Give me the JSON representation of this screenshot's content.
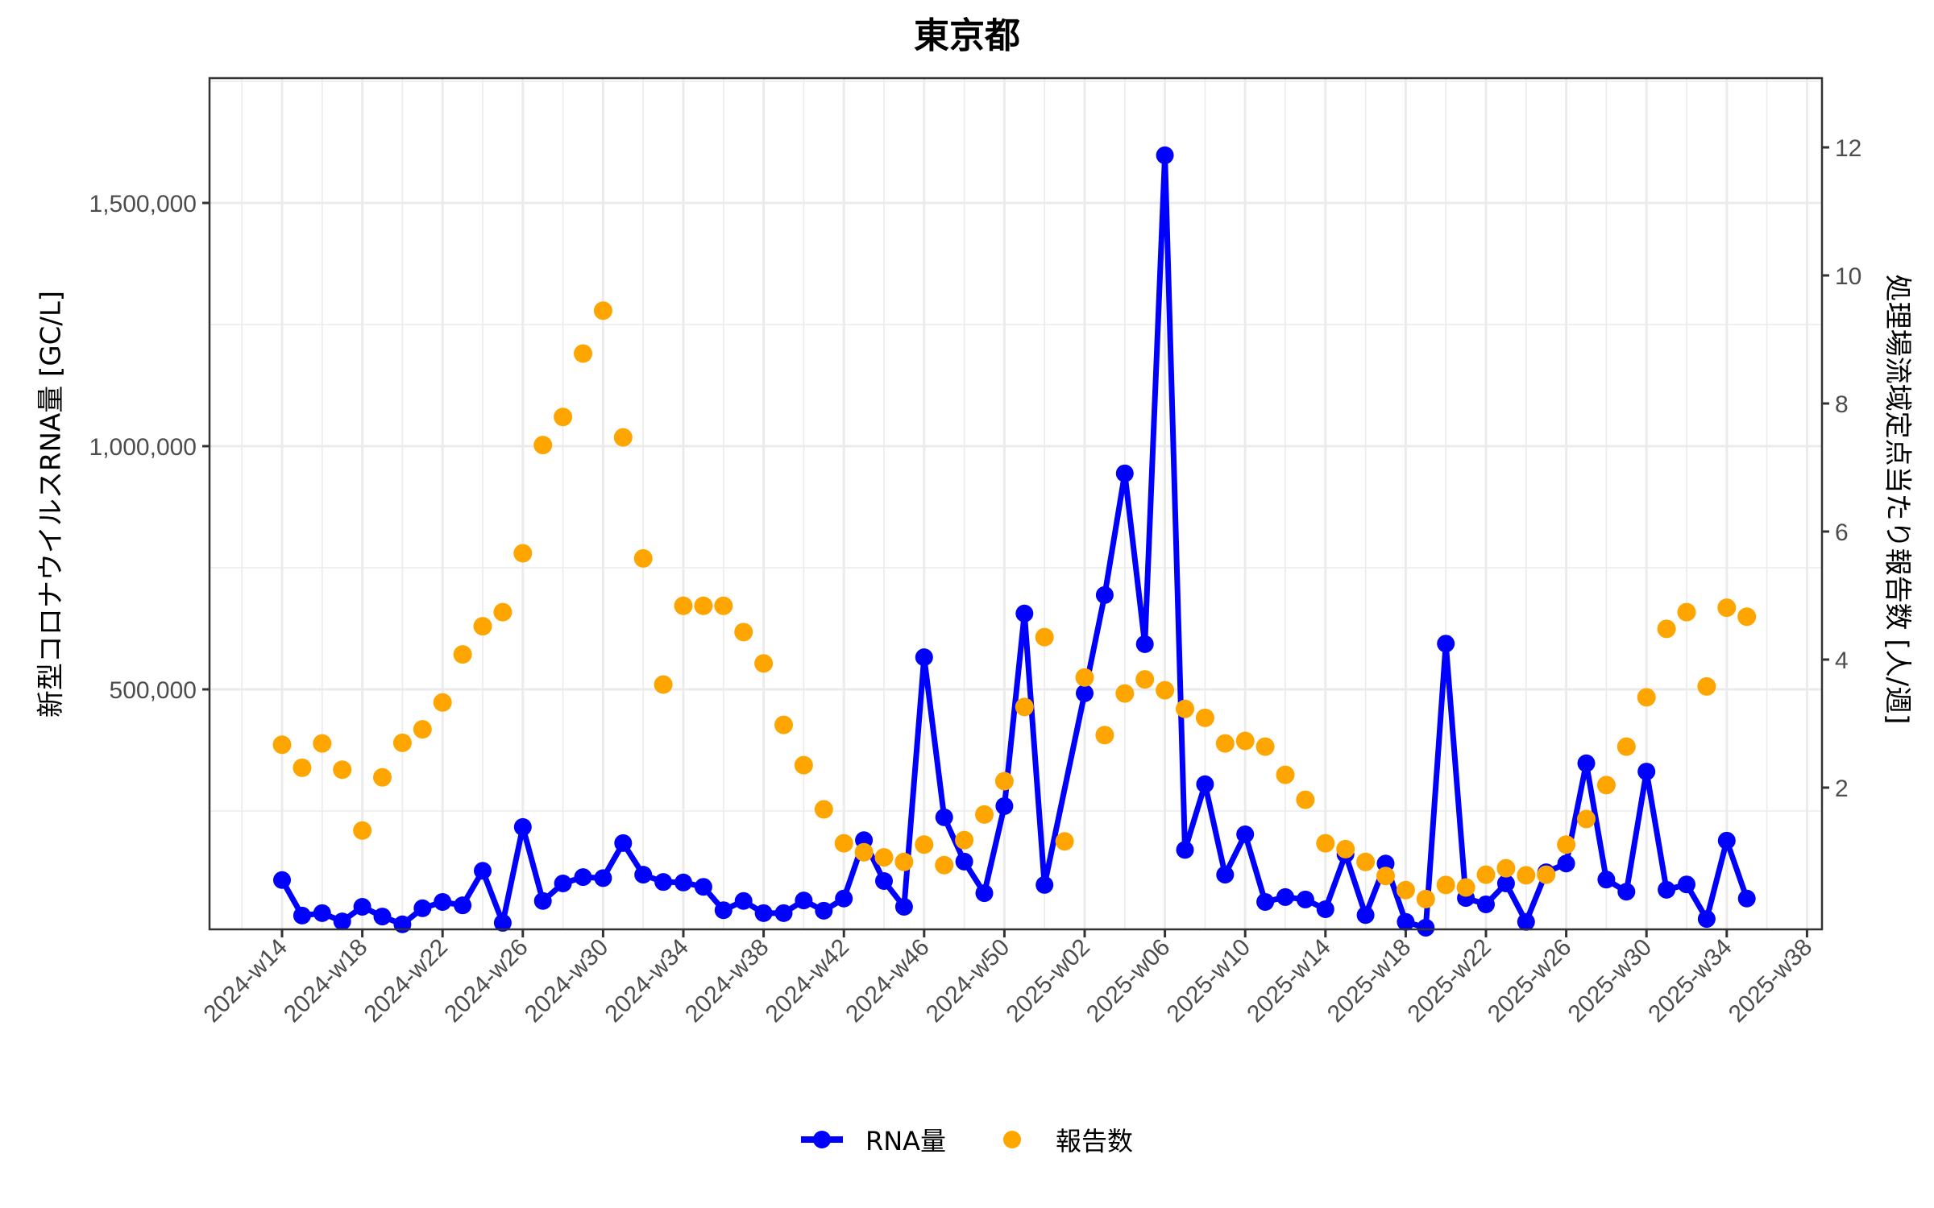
{
  "title": "東京都",
  "axes": {
    "y_left_label": "新型コロナウイルスRNA量 [GC/L]",
    "y_right_label": "処理場流域定点当たり報告数 [人/週]",
    "y_left_ticks": [
      "500,000",
      "1,000,000",
      "1,500,000"
    ],
    "y_left_tick_values": [
      500000,
      1000000,
      1500000
    ],
    "y_right_ticks": [
      "2",
      "4",
      "6",
      "8",
      "10",
      "12"
    ],
    "y_right_tick_values": [
      2,
      4,
      6,
      8,
      10,
      12
    ],
    "x_ticks": [
      "2024-w14",
      "2024-w18",
      "2024-w22",
      "2024-w26",
      "2024-w30",
      "2024-w34",
      "2024-w38",
      "2024-w42",
      "2024-w46",
      "2024-w50",
      "2025-w02",
      "2025-w06",
      "2025-w10",
      "2025-w14",
      "2025-w18",
      "2025-w22",
      "2025-w26",
      "2025-w30",
      "2025-w34",
      "2025-w38"
    ]
  },
  "legend": {
    "rna_label": "RNA量",
    "reports_label": "報告数"
  },
  "colors": {
    "rna": "#0000ff",
    "reports": "#ffa500",
    "grid": "#ebebeb",
    "panel_border": "#333333",
    "tick_text": "#4d4d4d"
  },
  "chart_data": {
    "type": "line",
    "title": "東京都",
    "xlabel": "",
    "ylabel": "新型コロナウイルスRNA量 [GC/L]",
    "y2label": "処理場流域定点当たり報告数 [人/週]",
    "ylim": [
      0,
      1750000
    ],
    "y2lim": [
      0,
      12.5
    ],
    "grid": true,
    "legend_position": "bottom",
    "x": [
      "2024-w14",
      "2024-w15",
      "2024-w16",
      "2024-w17",
      "2024-w18",
      "2024-w19",
      "2024-w20",
      "2024-w21",
      "2024-w22",
      "2024-w23",
      "2024-w24",
      "2024-w25",
      "2024-w26",
      "2024-w27",
      "2024-w28",
      "2024-w29",
      "2024-w30",
      "2024-w31",
      "2024-w32",
      "2024-w33",
      "2024-w34",
      "2024-w35",
      "2024-w36",
      "2024-w37",
      "2024-w38",
      "2024-w39",
      "2024-w40",
      "2024-w41",
      "2024-w42",
      "2024-w43",
      "2024-w44",
      "2024-w45",
      "2024-w46",
      "2024-w47",
      "2024-w48",
      "2024-w49",
      "2024-w50",
      "2024-w51",
      "2024-w52",
      "2025-w01",
      "2025-w02",
      "2025-w03",
      "2025-w04",
      "2025-w05",
      "2025-w06",
      "2025-w07",
      "2025-w08",
      "2025-w09",
      "2025-w10",
      "2025-w11",
      "2025-w12",
      "2025-w13",
      "2025-w14",
      "2025-w15",
      "2025-w16",
      "2025-w17",
      "2025-w18",
      "2025-w19",
      "2025-w20",
      "2025-w21",
      "2025-w22",
      "2025-w23",
      "2025-w24",
      "2025-w25",
      "2025-w26",
      "2025-w27",
      "2025-w28",
      "2025-w29",
      "2025-w30",
      "2025-w31",
      "2025-w32",
      "2025-w33",
      "2025-w34",
      "2025-w35"
    ],
    "series": [
      {
        "name": "RNA量",
        "type": "line+points",
        "axis": "left",
        "color": "#0000ff",
        "values": [
          108000,
          35000,
          40000,
          23000,
          53000,
          33000,
          17000,
          50000,
          63000,
          56000,
          127000,
          20000,
          217000,
          65000,
          101000,
          114000,
          112000,
          184000,
          119000,
          104000,
          103000,
          94000,
          46000,
          65000,
          40000,
          40000,
          66000,
          45000,
          70000,
          190000,
          106000,
          53000,
          566000,
          237000,
          146000,
          81000,
          260000,
          656000,
          98000,
          null,
          492000,
          694000,
          944000,
          593000,
          1598000,
          170000,
          305000,
          119000,
          202000,
          63000,
          73000,
          68000,
          48000,
          161000,
          36000,
          142000,
          22000,
          10000,
          594000,
          71000,
          58000,
          101000,
          22000,
          124000,
          142000,
          348000,
          109000,
          84000,
          331000,
          88000,
          99000,
          28000,
          189000,
          70000
        ]
      },
      {
        "name": "報告数",
        "type": "scatter",
        "axis": "right",
        "color": "#ffa500",
        "values": [
          2.67,
          2.31,
          2.69,
          2.28,
          1.33,
          2.16,
          2.7,
          2.91,
          3.33,
          4.08,
          4.52,
          4.74,
          5.66,
          7.35,
          7.79,
          8.78,
          9.45,
          7.47,
          5.58,
          3.61,
          4.84,
          4.84,
          4.84,
          4.43,
          3.94,
          2.98,
          2.35,
          1.66,
          1.13,
          0.99,
          0.91,
          0.84,
          1.11,
          0.79,
          1.18,
          1.58,
          2.1,
          3.26,
          4.35,
          1.16,
          3.72,
          2.82,
          3.47,
          3.69,
          3.52,
          3.23,
          3.09,
          2.69,
          2.73,
          2.64,
          2.2,
          1.81,
          1.13,
          1.04,
          0.84,
          0.62,
          0.4,
          0.26,
          0.48,
          0.44,
          0.64,
          0.74,
          0.63,
          0.64,
          1.11,
          1.51,
          2.04,
          2.64,
          3.41,
          4.48,
          4.74,
          3.58,
          4.81,
          4.67
        ]
      }
    ]
  }
}
